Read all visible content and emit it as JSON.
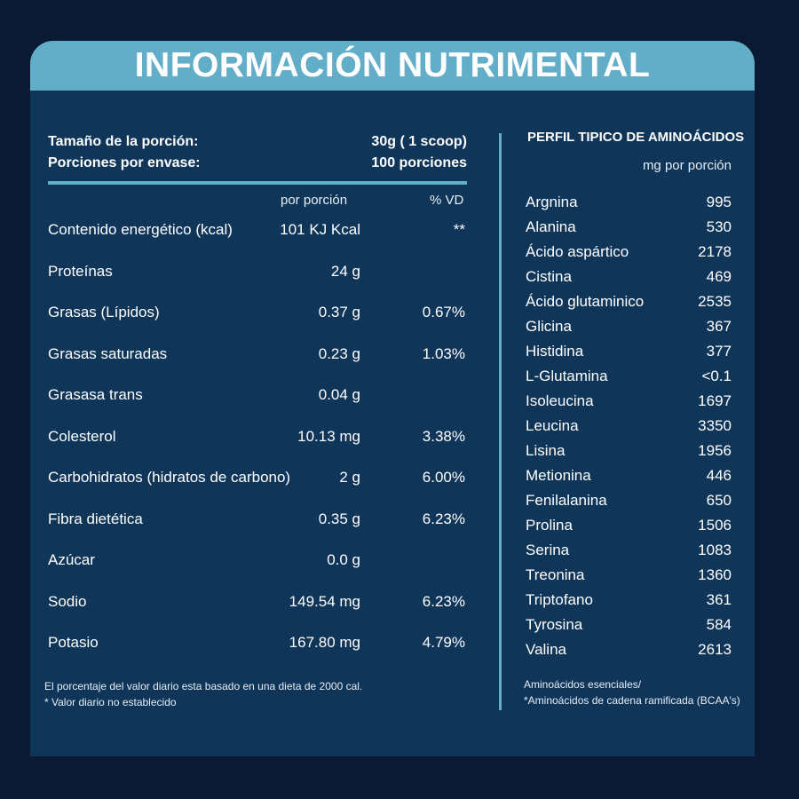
{
  "title": "INFORMACIÓN NUTRIMENTAL",
  "serving": {
    "size_label": "Tamaño de la porción:",
    "size_value": "30g ( 1 scoop)",
    "count_label": "Porciones por envase:",
    "count_value": "100 porciones"
  },
  "columns": {
    "per_serving": "por porción",
    "dv": "% VD"
  },
  "nutrients": [
    {
      "name": "Contenido energético (kcal)",
      "amount": "101 KJ Kcal",
      "dv": "**"
    },
    {
      "name": "Proteínas",
      "amount": "24 g",
      "dv": ""
    },
    {
      "name": "Grasas (Lípidos)",
      "amount": "0.37 g",
      "dv": "0.67%"
    },
    {
      "name": "Grasas saturadas",
      "amount": "0.23 g",
      "dv": "1.03%"
    },
    {
      "name": "Grasasa trans",
      "amount": "0.04 g",
      "dv": ""
    },
    {
      "name": "Colesterol",
      "amount": "10.13 mg",
      "dv": "3.38%"
    },
    {
      "name": "Carbohidratos (hidratos de carbono)",
      "amount": "2 g",
      "dv": "6.00%"
    },
    {
      "name": "Fibra dietética",
      "amount": "0.35 g",
      "dv": "6.23%"
    },
    {
      "name": "Azúcar",
      "amount": "0.0 g",
      "dv": ""
    },
    {
      "name": "Sodio",
      "amount": "149.54 mg",
      "dv": "6.23%"
    },
    {
      "name": "Potasio",
      "amount": "167.80 mg",
      "dv": "4.79%"
    }
  ],
  "footnote": {
    "line1": "El porcentaje del valor diario esta basado en una dieta de 2000 cal.",
    "line2": "* Valor diario no establecido"
  },
  "amino": {
    "title": "PERFIL TIPICO DE AMINOÁCIDOS",
    "unit": "mg por porción",
    "items": [
      {
        "name": "Argnina",
        "value": "995"
      },
      {
        "name": "Alanina",
        "value": "530"
      },
      {
        "name": "Ácido aspártico",
        "value": "2178"
      },
      {
        "name": "Cistina",
        "value": "469"
      },
      {
        "name": "Ácido glutaminico",
        "value": "2535"
      },
      {
        "name": "Glicina",
        "value": "367"
      },
      {
        "name": "Histidina",
        "value": "377"
      },
      {
        "name": "L-Glutamina",
        "value": "<0.1"
      },
      {
        "name": "Isoleucina",
        "value": "1697"
      },
      {
        "name": "Leucina",
        "value": "3350"
      },
      {
        "name": "Lisina",
        "value": "1956"
      },
      {
        "name": "Metionina",
        "value": "446"
      },
      {
        "name": "Fenilalanina",
        "value": "650"
      },
      {
        "name": "Prolina",
        "value": "1506"
      },
      {
        "name": "Serina",
        "value": "1083"
      },
      {
        "name": "Treonina",
        "value": "1360"
      },
      {
        "name": "Triptofano",
        "value": "361"
      },
      {
        "name": "Tyrosina",
        "value": "584"
      },
      {
        "name": "Valina",
        "value": "2613"
      }
    ],
    "foot1": "Aminoácidos esenciales/",
    "foot2": "*Aminoácidos de cadena ramificada (BCAA's)"
  },
  "colors": {
    "background": "#0b1a33",
    "panel": "#0f3559",
    "accent": "#62aec9"
  }
}
